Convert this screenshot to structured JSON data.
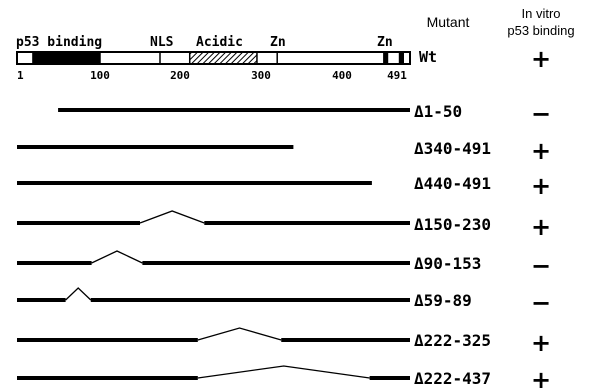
{
  "header": {
    "mutant_label": "Mutant",
    "binding_label_line1": "In vitro",
    "binding_label_line2": "p53 binding"
  },
  "protein": {
    "length": 491,
    "wt_label": "Wt",
    "wt_binding": "+",
    "domain_labels": [
      "p53 binding",
      "NLS",
      "Acidic",
      "Zn",
      "Zn"
    ],
    "segments": [
      {
        "start": 1,
        "end": 20,
        "fill": "white"
      },
      {
        "start": 20,
        "end": 100,
        "fill": "black"
      },
      {
        "start": 100,
        "end": 212,
        "fill": "white"
      },
      {
        "start": 212,
        "end": 295,
        "fill": "hatched"
      },
      {
        "start": 295,
        "end": 320,
        "fill": "white"
      },
      {
        "start": 320,
        "end": 455,
        "fill": "white"
      },
      {
        "start": 455,
        "end": 462,
        "fill": "black"
      },
      {
        "start": 462,
        "end": 476,
        "fill": "white"
      },
      {
        "start": 476,
        "end": 483,
        "fill": "black"
      },
      {
        "start": 483,
        "end": 491,
        "fill": "white"
      }
    ],
    "dividers": [
      20,
      100,
      175,
      212,
      295,
      320
    ],
    "tick_labels": [
      "1",
      "100",
      "200",
      "300",
      "400",
      "491"
    ],
    "tick_values": [
      1,
      100,
      200,
      300,
      400,
      491
    ]
  },
  "mutants": [
    {
      "label": "Δ1-50",
      "binding": "−",
      "del_start": 1,
      "del_end": 50
    },
    {
      "label": "Δ340-491",
      "binding": "+",
      "del_start": 340,
      "del_end": 491
    },
    {
      "label": "Δ440-491",
      "binding": "+",
      "del_start": 440,
      "del_end": 491
    },
    {
      "label": "Δ150-230",
      "binding": "+",
      "del_start": 150,
      "del_end": 230
    },
    {
      "label": "Δ90-153",
      "binding": "−",
      "del_start": 90,
      "del_end": 153
    },
    {
      "label": "Δ59-89",
      "binding": "−",
      "del_start": 59,
      "del_end": 89
    },
    {
      "label": "Δ222-325",
      "binding": "+",
      "del_start": 222,
      "del_end": 325
    },
    {
      "label": "Δ222-437",
      "binding": "+",
      "del_start": 222,
      "del_end": 437
    }
  ],
  "colors": {
    "line": "#000000",
    "background": "#ffffff"
  }
}
